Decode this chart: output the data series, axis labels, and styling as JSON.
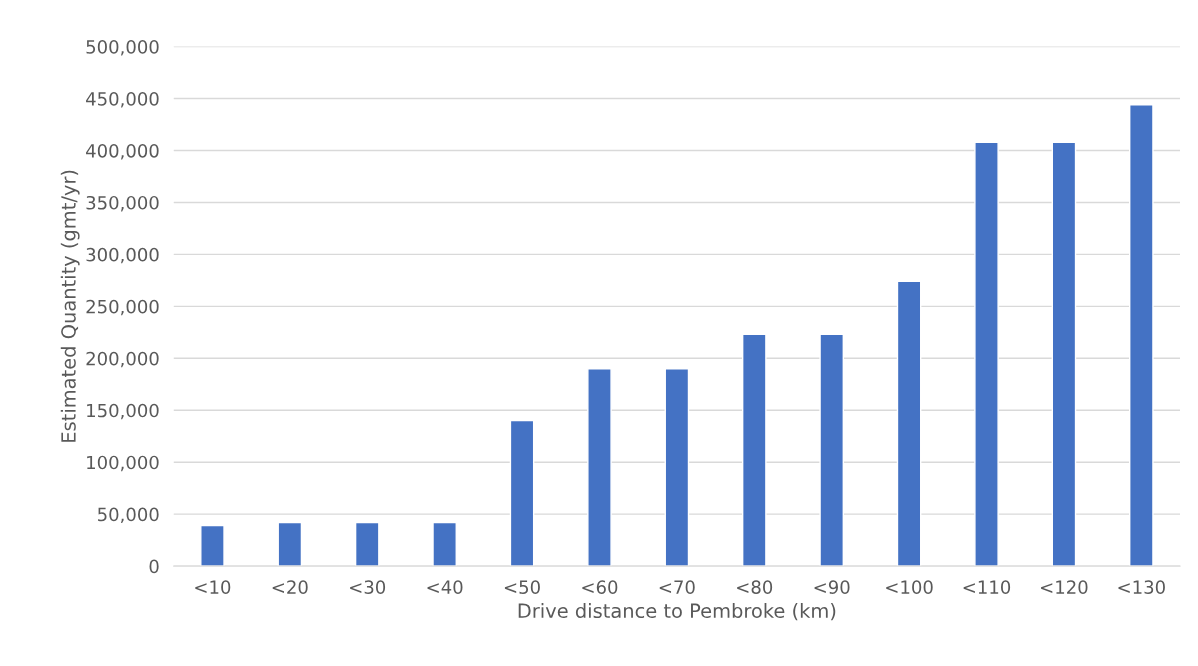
{
  "chart_data": {
    "type": "bar",
    "xlabel": "Drive distance to Pembroke (km)",
    "ylabel": "Estimated Quantity (gmt/yr)",
    "categories": [
      "<10",
      "<20",
      "<30",
      "<40",
      "<50",
      "<60",
      "<70",
      "<80",
      "<90",
      "<100",
      "<110",
      "<120",
      "<130"
    ],
    "values": [
      39000,
      42000,
      42000,
      42000,
      140000,
      190000,
      190000,
      223000,
      223000,
      274000,
      408000,
      408000,
      444000
    ],
    "color": "#4472c4",
    "ylim": [
      0,
      500000
    ],
    "yticks": [
      {
        "value": 0,
        "label": "0"
      },
      {
        "value": 50000,
        "label": "50,000"
      },
      {
        "value": 100000,
        "label": "100,000"
      },
      {
        "value": 150000,
        "label": "150,000"
      },
      {
        "value": 200000,
        "label": "200,000"
      },
      {
        "value": 250000,
        "label": "250,000"
      },
      {
        "value": 300000,
        "label": "300,000"
      },
      {
        "value": 350000,
        "label": "350,000"
      },
      {
        "value": 400000,
        "label": "400,000"
      },
      {
        "value": 450000,
        "label": "450,000"
      },
      {
        "value": 500000,
        "label": "500,000"
      }
    ],
    "grid": "y",
    "legend": false
  }
}
